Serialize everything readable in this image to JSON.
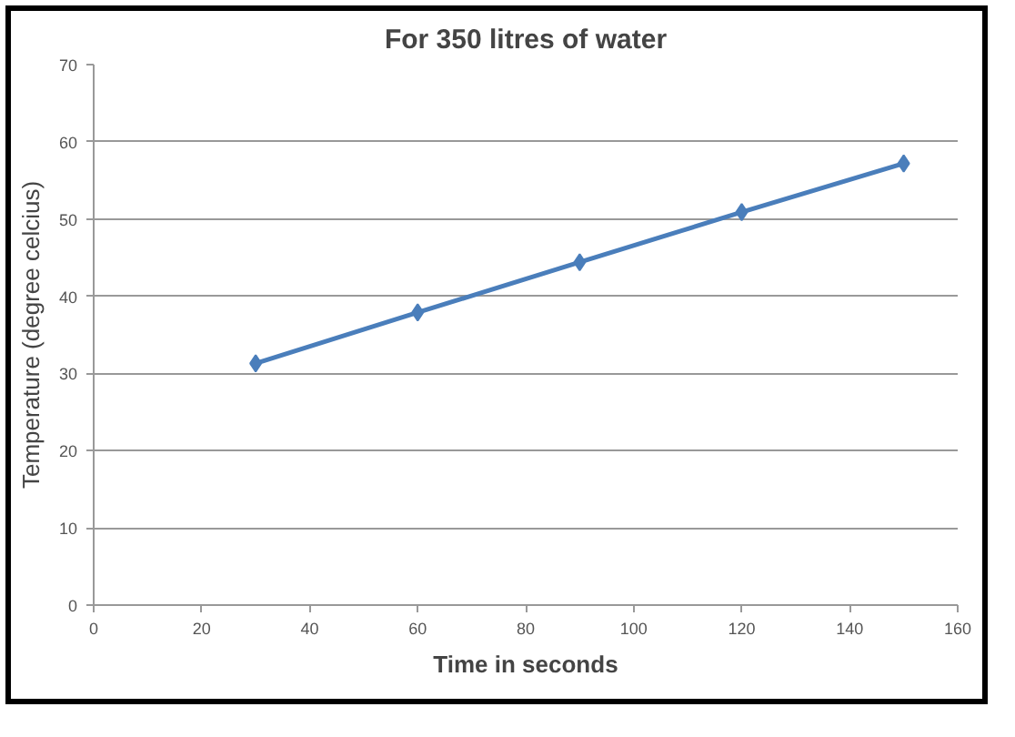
{
  "chart_data": {
    "type": "line",
    "title": "For 350 litres of water",
    "xlabel": "Time in seconds",
    "ylabel": "Temperature (degree celcius)",
    "x": [
      30,
      60,
      90,
      120,
      150
    ],
    "series": [
      {
        "color": "#4a7ebb",
        "values": [
          31.3,
          37.9,
          44.4,
          50.9,
          57.2
        ]
      }
    ],
    "xlim": [
      0,
      160
    ],
    "xticks": [
      0,
      20,
      40,
      60,
      80,
      100,
      120,
      140,
      160
    ],
    "ylim": [
      0,
      70
    ],
    "yticks": [
      0,
      10,
      20,
      30,
      40,
      50,
      60,
      70
    ],
    "grid": "y",
    "marker": "diamond",
    "line_style": "solid"
  }
}
